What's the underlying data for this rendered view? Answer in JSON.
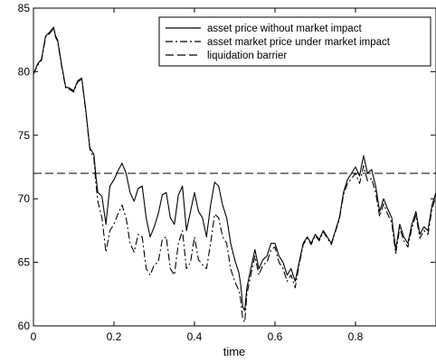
{
  "chart_data": {
    "type": "line",
    "xlabel": "time",
    "ylabel": "",
    "xlim": [
      0,
      1
    ],
    "ylim": [
      60,
      85
    ],
    "xticks": [
      0,
      0.2,
      0.4,
      0.6,
      0.8
    ],
    "xtick_labels": [
      "0",
      "0.2",
      "0.4",
      "0.6",
      "0.8"
    ],
    "yticks": [
      60,
      65,
      70,
      75,
      80,
      85
    ],
    "ytick_labels": [
      "60",
      "65",
      "70",
      "75",
      "80",
      "85"
    ],
    "grid": false,
    "legend_position": "top-right",
    "series": [
      {
        "name": "asset price without market impact",
        "style": "solid",
        "color": "#000000",
        "points": [
          [
            0.0,
            79.8
          ],
          [
            0.01,
            80.6
          ],
          [
            0.02,
            81.0
          ],
          [
            0.03,
            82.8
          ],
          [
            0.04,
            83.1
          ],
          [
            0.05,
            83.5
          ],
          [
            0.055,
            82.8
          ],
          [
            0.06,
            82.5
          ],
          [
            0.07,
            80.5
          ],
          [
            0.08,
            78.8
          ],
          [
            0.09,
            78.7
          ],
          [
            0.1,
            78.5
          ],
          [
            0.11,
            79.3
          ],
          [
            0.12,
            79.5
          ],
          [
            0.13,
            77.0
          ],
          [
            0.14,
            74.0
          ],
          [
            0.15,
            73.5
          ],
          [
            0.155,
            71.8
          ],
          [
            0.16,
            70.5
          ],
          [
            0.17,
            70.2
          ],
          [
            0.18,
            68.0
          ],
          [
            0.19,
            71.0
          ],
          [
            0.2,
            71.5
          ],
          [
            0.21,
            72.2
          ],
          [
            0.22,
            72.8
          ],
          [
            0.23,
            72.0
          ],
          [
            0.24,
            70.5
          ],
          [
            0.25,
            69.8
          ],
          [
            0.26,
            70.8
          ],
          [
            0.27,
            71.0
          ],
          [
            0.28,
            68.5
          ],
          [
            0.29,
            67.0
          ],
          [
            0.3,
            67.8
          ],
          [
            0.31,
            68.8
          ],
          [
            0.32,
            70.3
          ],
          [
            0.33,
            70.5
          ],
          [
            0.34,
            68.5
          ],
          [
            0.35,
            68.0
          ],
          [
            0.36,
            70.3
          ],
          [
            0.37,
            71.0
          ],
          [
            0.38,
            67.5
          ],
          [
            0.39,
            69.0
          ],
          [
            0.4,
            70.5
          ],
          [
            0.41,
            69.0
          ],
          [
            0.42,
            68.5
          ],
          [
            0.43,
            67.0
          ],
          [
            0.44,
            69.5
          ],
          [
            0.45,
            71.3
          ],
          [
            0.46,
            71.0
          ],
          [
            0.47,
            69.5
          ],
          [
            0.48,
            68.5
          ],
          [
            0.49,
            66.5
          ],
          [
            0.5,
            65.2
          ],
          [
            0.51,
            64.2
          ],
          [
            0.515,
            63.2
          ],
          [
            0.52,
            61.5
          ],
          [
            0.525,
            61.2
          ],
          [
            0.53,
            63.0
          ],
          [
            0.54,
            64.5
          ],
          [
            0.55,
            66.0
          ],
          [
            0.56,
            64.5
          ],
          [
            0.57,
            65.2
          ],
          [
            0.58,
            65.5
          ],
          [
            0.59,
            66.5
          ],
          [
            0.6,
            66.5
          ],
          [
            0.61,
            65.5
          ],
          [
            0.62,
            65.0
          ],
          [
            0.63,
            64.0
          ],
          [
            0.64,
            64.5
          ],
          [
            0.65,
            63.5
          ],
          [
            0.66,
            65.0
          ],
          [
            0.67,
            66.5
          ],
          [
            0.68,
            67.0
          ],
          [
            0.69,
            66.5
          ],
          [
            0.7,
            67.2
          ],
          [
            0.71,
            66.8
          ],
          [
            0.72,
            67.5
          ],
          [
            0.73,
            67.0
          ],
          [
            0.74,
            66.5
          ],
          [
            0.75,
            67.5
          ],
          [
            0.76,
            68.5
          ],
          [
            0.77,
            70.5
          ],
          [
            0.78,
            71.5
          ],
          [
            0.79,
            72.0
          ],
          [
            0.8,
            72.5
          ],
          [
            0.81,
            71.8
          ],
          [
            0.82,
            73.4
          ],
          [
            0.83,
            72.0
          ],
          [
            0.84,
            72.3
          ],
          [
            0.85,
            71.0
          ],
          [
            0.86,
            69.0
          ],
          [
            0.87,
            70.0
          ],
          [
            0.88,
            69.2
          ],
          [
            0.89,
            68.5
          ],
          [
            0.9,
            66.0
          ],
          [
            0.91,
            68.0
          ],
          [
            0.92,
            67.0
          ],
          [
            0.93,
            66.5
          ],
          [
            0.94,
            68.0
          ],
          [
            0.95,
            69.0
          ],
          [
            0.96,
            67.2
          ],
          [
            0.97,
            67.8
          ],
          [
            0.98,
            67.5
          ],
          [
            0.99,
            69.5
          ],
          [
            1.0,
            70.5
          ]
        ]
      },
      {
        "name": "asset market price under market impact",
        "style": "dashdot",
        "color": "#000000",
        "points": [
          [
            0.0,
            79.8
          ],
          [
            0.01,
            80.5
          ],
          [
            0.02,
            80.9
          ],
          [
            0.03,
            82.7
          ],
          [
            0.04,
            83.0
          ],
          [
            0.05,
            83.4
          ],
          [
            0.055,
            82.7
          ],
          [
            0.06,
            82.4
          ],
          [
            0.07,
            80.4
          ],
          [
            0.08,
            78.7
          ],
          [
            0.09,
            78.6
          ],
          [
            0.1,
            78.4
          ],
          [
            0.11,
            79.2
          ],
          [
            0.12,
            79.4
          ],
          [
            0.13,
            76.9
          ],
          [
            0.14,
            73.9
          ],
          [
            0.15,
            73.2
          ],
          [
            0.155,
            71.2
          ],
          [
            0.16,
            69.8
          ],
          [
            0.17,
            68.5
          ],
          [
            0.18,
            65.8
          ],
          [
            0.19,
            67.5
          ],
          [
            0.2,
            68.0
          ],
          [
            0.21,
            68.8
          ],
          [
            0.22,
            69.5
          ],
          [
            0.23,
            68.5
          ],
          [
            0.24,
            66.5
          ],
          [
            0.25,
            65.8
          ],
          [
            0.26,
            67.2
          ],
          [
            0.27,
            67.0
          ],
          [
            0.28,
            64.5
          ],
          [
            0.29,
            64.0
          ],
          [
            0.3,
            64.8
          ],
          [
            0.31,
            65.0
          ],
          [
            0.32,
            66.8
          ],
          [
            0.33,
            67.0
          ],
          [
            0.34,
            64.5
          ],
          [
            0.35,
            64.0
          ],
          [
            0.36,
            66.5
          ],
          [
            0.37,
            67.5
          ],
          [
            0.38,
            64.5
          ],
          [
            0.39,
            65.0
          ],
          [
            0.4,
            67.0
          ],
          [
            0.41,
            65.2
          ],
          [
            0.42,
            64.8
          ],
          [
            0.43,
            64.5
          ],
          [
            0.44,
            66.5
          ],
          [
            0.45,
            68.8
          ],
          [
            0.46,
            68.5
          ],
          [
            0.47,
            67.0
          ],
          [
            0.48,
            66.5
          ],
          [
            0.49,
            64.5
          ],
          [
            0.5,
            63.5
          ],
          [
            0.51,
            62.8
          ],
          [
            0.515,
            62.0
          ],
          [
            0.52,
            60.5
          ],
          [
            0.525,
            60.3
          ],
          [
            0.53,
            62.5
          ],
          [
            0.54,
            64.0
          ],
          [
            0.55,
            65.5
          ],
          [
            0.56,
            64.0
          ],
          [
            0.57,
            64.8
          ],
          [
            0.58,
            65.0
          ],
          [
            0.59,
            66.0
          ],
          [
            0.6,
            66.2
          ],
          [
            0.61,
            65.0
          ],
          [
            0.62,
            64.5
          ],
          [
            0.63,
            63.5
          ],
          [
            0.64,
            64.0
          ],
          [
            0.65,
            63.0
          ],
          [
            0.66,
            64.8
          ],
          [
            0.67,
            66.4
          ],
          [
            0.68,
            66.9
          ],
          [
            0.69,
            66.4
          ],
          [
            0.7,
            67.1
          ],
          [
            0.71,
            66.7
          ],
          [
            0.72,
            67.4
          ],
          [
            0.73,
            66.9
          ],
          [
            0.74,
            66.4
          ],
          [
            0.75,
            67.4
          ],
          [
            0.76,
            68.4
          ],
          [
            0.77,
            70.3
          ],
          [
            0.78,
            71.2
          ],
          [
            0.79,
            71.6
          ],
          [
            0.8,
            72.0
          ],
          [
            0.81,
            71.2
          ],
          [
            0.82,
            72.6
          ],
          [
            0.83,
            71.4
          ],
          [
            0.84,
            71.6
          ],
          [
            0.85,
            70.5
          ],
          [
            0.86,
            68.6
          ],
          [
            0.87,
            69.6
          ],
          [
            0.88,
            68.8
          ],
          [
            0.89,
            68.1
          ],
          [
            0.9,
            65.7
          ],
          [
            0.91,
            67.7
          ],
          [
            0.92,
            66.7
          ],
          [
            0.93,
            66.2
          ],
          [
            0.94,
            67.7
          ],
          [
            0.95,
            68.7
          ],
          [
            0.96,
            66.9
          ],
          [
            0.97,
            67.5
          ],
          [
            0.98,
            67.2
          ],
          [
            0.99,
            69.2
          ],
          [
            1.0,
            70.2
          ]
        ]
      },
      {
        "name": "liquidation barrier",
        "style": "dashed",
        "color": "#000000",
        "points": [
          [
            0,
            72
          ],
          [
            1,
            72
          ]
        ]
      }
    ]
  }
}
